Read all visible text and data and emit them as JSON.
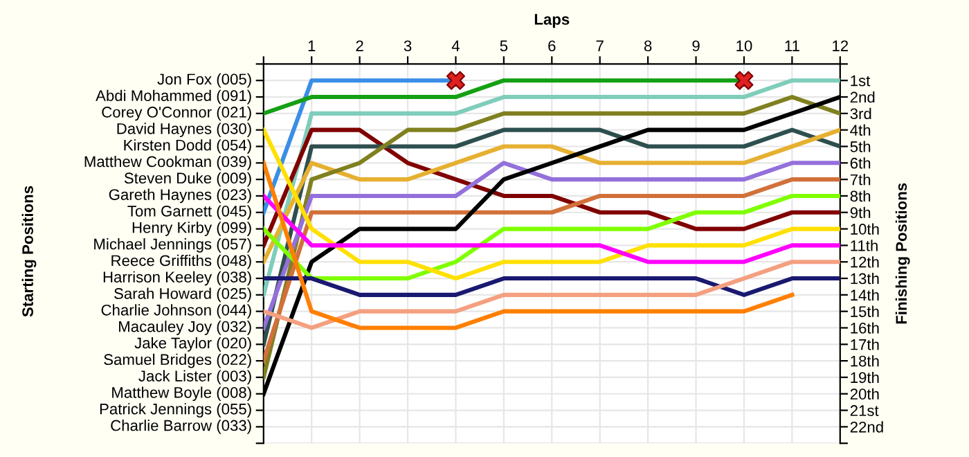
{
  "chart_data": {
    "type": "line",
    "xlabel": "Laps",
    "ylabel": "Finishing Positions",
    "x": [
      0,
      1,
      2,
      3,
      4,
      5,
      6,
      7,
      8,
      9,
      10,
      11,
      12
    ],
    "xlim": [
      0,
      12
    ],
    "xticks": [
      {
        "value": 0,
        "label": null
      },
      1,
      2,
      3,
      4,
      5,
      6,
      7,
      8,
      9,
      10,
      11,
      12
    ],
    "ylim": [
      23,
      0
    ],
    "yticks": [
      {
        "value": 0,
        "label": null
      },
      {
        "value": 1,
        "label": "1st"
      },
      {
        "value": 2,
        "label": "2nd"
      },
      {
        "value": 3,
        "label": "3rd"
      },
      {
        "value": 4,
        "label": "4th"
      },
      {
        "value": 5,
        "label": "5th"
      },
      {
        "value": 6,
        "label": "6th"
      },
      {
        "value": 7,
        "label": "7th"
      },
      {
        "value": 8,
        "label": "8th"
      },
      {
        "value": 9,
        "label": "9th"
      },
      {
        "value": 10,
        "label": "10th"
      },
      {
        "value": 11,
        "label": "11th"
      },
      {
        "value": 12,
        "label": "12th"
      },
      {
        "value": 13,
        "label": "13th"
      },
      {
        "value": 14,
        "label": "14th"
      },
      {
        "value": 15,
        "label": "15th"
      },
      {
        "value": 16,
        "label": "16th"
      },
      {
        "value": 17,
        "label": "17th"
      },
      {
        "value": 18,
        "label": "18th"
      },
      {
        "value": 19,
        "label": "19th"
      },
      {
        "value": 20,
        "label": "20th"
      },
      {
        "value": 21,
        "label": "21st"
      },
      {
        "value": 22,
        "label": "22nd"
      },
      {
        "value": 23,
        "label": null
      }
    ],
    "annotations": [
      "Starting Positions",
      "Jon Fox (005)",
      "Abdi Mohammed (091)",
      "Corey O'Connor (021)",
      "David Haynes (030)",
      "Kirsten Dodd (054)",
      "Matthew Cookman (039)",
      "Steven Duke (009)",
      "Gareth Haynes (023)",
      "Tom Garnett (045)",
      "Henry Kirby (099)",
      "Michael Jennings (057)",
      "Reece Griffiths (048)",
      "Harrison Keeley (038)",
      "Sarah Howard (025)",
      "Charlie Johnson (044)",
      "Macauley Joy (032)",
      "Jake Taylor (020)",
      "Samuel Bridges (022)",
      "Jack Lister (003)",
      "Matthew Boyle (008)",
      "Patrick Jennings (055)",
      "Charlie Barrow (033)"
    ],
    "grid": true,
    "legend": false,
    "marker": "none",
    "line_style": "solid",
    "series": [
      {
        "color": "#3a8ee6",
        "values": [
          9,
          1,
          1,
          1,
          1,
          null,
          null,
          null,
          null,
          null,
          null,
          null,
          null
        ]
      },
      {
        "color": "#14a014",
        "values": [
          3,
          2,
          2,
          2,
          2,
          1,
          1,
          1,
          1,
          1,
          1,
          null,
          null
        ]
      },
      {
        "color": "#7fcdbb",
        "values": [
          14,
          3,
          3,
          3,
          3,
          2,
          2,
          2,
          2,
          2,
          2,
          1,
          1
        ]
      },
      {
        "color": "#800000",
        "values": [
          11,
          4,
          4,
          6,
          7,
          8,
          8,
          9,
          9,
          10,
          10,
          9,
          9
        ]
      },
      {
        "color": "#2f4f4f",
        "values": [
          17,
          5,
          5,
          5,
          5,
          4,
          4,
          4,
          5,
          5,
          5,
          4,
          5
        ]
      },
      {
        "color": "#e6b030",
        "values": [
          12,
          6,
          7,
          7,
          6,
          5,
          5,
          6,
          6,
          6,
          6,
          5,
          4
        ]
      },
      {
        "color": "#808020",
        "values": [
          19,
          7,
          6,
          4,
          4,
          3,
          3,
          3,
          3,
          3,
          3,
          2,
          3
        ]
      },
      {
        "color": "#9370db",
        "values": [
          16,
          8,
          8,
          8,
          8,
          6,
          7,
          7,
          7,
          7,
          7,
          6,
          6
        ]
      },
      {
        "color": "#d2703a",
        "values": [
          18,
          9,
          9,
          9,
          9,
          9,
          9,
          8,
          8,
          8,
          8,
          7,
          7
        ]
      },
      {
        "color": "#000000",
        "values": [
          20,
          12,
          10,
          10,
          10,
          7,
          6,
          5,
          4,
          4,
          4,
          3,
          2
        ]
      },
      {
        "color": "#80ff00",
        "values": [
          10,
          13,
          13,
          13,
          12,
          10,
          10,
          10,
          10,
          9,
          9,
          8,
          8
        ]
      },
      {
        "color": "#ffe000",
        "values": [
          4,
          10,
          12,
          12,
          13,
          12,
          12,
          12,
          11,
          11,
          11,
          10,
          10
        ]
      },
      {
        "color": "#ff00ff",
        "values": [
          8,
          11,
          11,
          11,
          11,
          11,
          11,
          11,
          12,
          12,
          12,
          11,
          11
        ]
      },
      {
        "color": "#191970",
        "values": [
          13,
          13,
          14,
          14,
          14,
          13,
          13,
          13,
          13,
          13,
          14,
          13,
          13
        ]
      },
      {
        "color": "#f4a080",
        "values": [
          15,
          16,
          15,
          15,
          15,
          14,
          14,
          14,
          14,
          14,
          13,
          12,
          12
        ]
      },
      {
        "color": "#ff7f00",
        "values": [
          6,
          15,
          16,
          16,
          16,
          15,
          15,
          15,
          15,
          15,
          15,
          14,
          null
        ]
      },
      {
        "type": "scatter",
        "marker": "cross",
        "color": "#e02020",
        "x": [
          4,
          10
        ],
        "values": [
          1,
          1
        ]
      }
    ]
  }
}
